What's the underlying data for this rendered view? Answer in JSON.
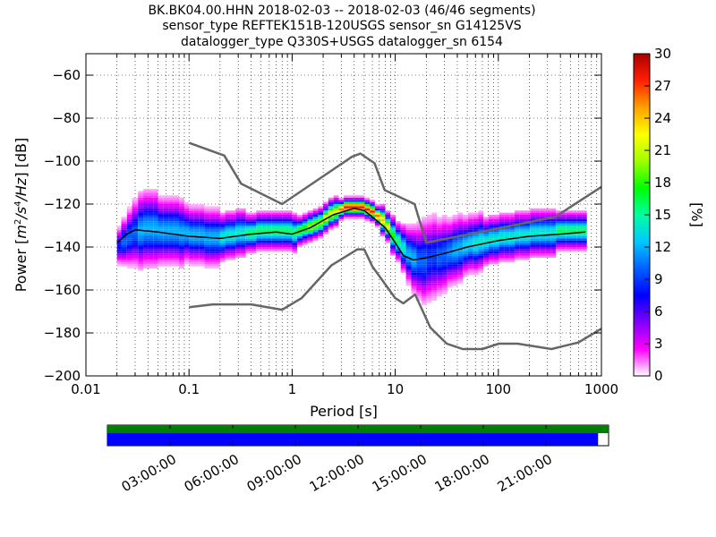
{
  "chart_data": {
    "type": "heatmap",
    "title_lines": [
      "BK.BK04.00.HHN   2018-02-03 -- 2018-02-03  (46/46 segments)",
      "sensor_type REFTEK151B-120USGS sensor_sn G14125VS",
      "datalogger_type Q330S+USGS datalogger_sn 6154"
    ],
    "xlabel": "Period [s]",
    "ylabel_prefix": "Power [",
    "ylabel_suffix": "] [dB]",
    "ylabel_unit_parts": [
      "m",
      "2",
      "/s",
      "4",
      "/Hz"
    ],
    "x_scale": "log",
    "xlim": [
      0.01,
      1000
    ],
    "ylim": [
      -200,
      -50
    ],
    "x_ticks": [
      {
        "value": 0.01,
        "label": "0.01"
      },
      {
        "value": 0.1,
        "label": "0.1"
      },
      {
        "value": 1,
        "label": "1"
      },
      {
        "value": 10,
        "label": "10"
      },
      {
        "value": 100,
        "label": "100"
      },
      {
        "value": 1000,
        "label": "1000"
      }
    ],
    "y_ticks": [
      {
        "value": -60,
        "label": "−60"
      },
      {
        "value": -80,
        "label": "−80"
      },
      {
        "value": -100,
        "label": "−100"
      },
      {
        "value": -120,
        "label": "−120"
      },
      {
        "value": -140,
        "label": "−140"
      },
      {
        "value": -160,
        "label": "−160"
      },
      {
        "value": -180,
        "label": "−180"
      },
      {
        "value": -200,
        "label": "−200"
      }
    ],
    "grid": "dotted",
    "colorbar": {
      "label": "[%]",
      "range": [
        0,
        30
      ],
      "ticks": [
        {
          "value": 0,
          "label": "0"
        },
        {
          "value": 3,
          "label": "3"
        },
        {
          "value": 6,
          "label": "6"
        },
        {
          "value": 9,
          "label": "9"
        },
        {
          "value": 12,
          "label": "12"
        },
        {
          "value": 15,
          "label": "15"
        },
        {
          "value": 18,
          "label": "18"
        },
        {
          "value": 21,
          "label": "21"
        },
        {
          "value": 24,
          "label": "24"
        },
        {
          "value": 27,
          "label": "27"
        },
        {
          "value": 30,
          "label": "30"
        }
      ],
      "colormap": [
        "#ffffff",
        "#ff00ff",
        "#7f00ff",
        "#0000ff",
        "#0060ff",
        "#00c8ff",
        "#00ffa0",
        "#00ff00",
        "#a0ff00",
        "#ffff00",
        "#ffa000",
        "#ff2000",
        "#aa0000"
      ]
    },
    "nhnm_model": {
      "x": [
        0.1,
        0.22,
        0.32,
        0.8,
        3.8,
        4.6,
        6.3,
        7.9,
        15.4,
        20,
        354.8,
        1000
      ],
      "y": [
        -91.5,
        -97.4,
        -110.5,
        -120,
        -98,
        -96.5,
        -101,
        -113.5,
        -120,
        -138,
        -126,
        -112
      ]
    },
    "nlnm_model": {
      "x": [
        0.1,
        0.17,
        0.4,
        0.8,
        1.24,
        2.4,
        4.3,
        5,
        6,
        10,
        12,
        15.6,
        21.9,
        31.6,
        45,
        70,
        101,
        154,
        328,
        600,
        1000
      ],
      "y": [
        -168,
        -166.7,
        -166.7,
        -169.2,
        -163.7,
        -148.6,
        -141.1,
        -141.1,
        -149,
        -163.8,
        -166.2,
        -162.1,
        -177.5,
        -185,
        -187.5,
        -187.5,
        -185,
        -185,
        -187.5,
        -184.4,
        -178
      ]
    },
    "mode_curve": {
      "x": [
        0.02,
        0.025,
        0.03,
        0.05,
        0.1,
        0.2,
        0.4,
        0.7,
        1,
        1.5,
        2.5,
        4,
        5,
        6,
        8,
        10,
        12,
        15,
        20,
        30,
        50,
        100,
        200,
        400,
        700
      ],
      "y": [
        -138,
        -134,
        -132,
        -133,
        -135,
        -136,
        -134,
        -133,
        -134,
        -131,
        -125,
        -122,
        -123,
        -126,
        -131,
        -138,
        -144,
        -146,
        -145,
        -143,
        -140,
        -137,
        -135,
        -134,
        -133
      ]
    },
    "psd_density": {
      "x_bins": [
        0.02,
        0.022,
        0.025,
        0.028,
        0.032,
        0.036,
        0.04,
        0.045,
        0.05,
        0.056,
        0.063,
        0.071,
        0.08,
        0.09,
        0.1,
        0.112,
        0.126,
        0.141,
        0.159,
        0.178,
        0.2,
        0.224,
        0.252,
        0.283,
        0.317,
        0.356,
        0.4,
        0.449,
        0.504,
        0.566,
        0.635,
        0.713,
        0.8,
        0.898,
        1.0,
        1.12,
        1.26,
        1.41,
        1.59,
        1.78,
        2.0,
        2.24,
        2.52,
        2.83,
        3.17,
        3.56,
        4.0,
        4.49,
        5.04,
        5.66,
        6.35,
        7.13,
        8.0,
        8.98,
        10.1,
        11.3,
        12.7,
        14.3,
        16.0,
        18.0,
        20.2,
        22.6,
        25.4,
        28.5,
        32.0,
        35.9,
        40.3,
        45.3,
        50.8,
        57.0,
        64.0,
        71.8,
        80.6,
        90.5,
        101.6,
        114,
        128,
        143.7,
        161.3,
        181,
        203.2,
        228,
        256,
        287.4,
        322.5,
        362,
        406.4,
        456.1,
        512,
        574.7,
        645
      ],
      "y_bin_db": 1,
      "rows_note": "",
      "center_db": [
        -140,
        -138,
        -136,
        -134,
        -133,
        -132,
        -132,
        -132,
        -133,
        -133,
        -133,
        -133,
        -134,
        -134,
        -135,
        -135,
        -135,
        -136,
        -136,
        -136,
        -136,
        -135,
        -135,
        -134,
        -134,
        -134,
        -134,
        -133,
        -133,
        -133,
        -133,
        -133,
        -133,
        -133,
        -134,
        -133,
        -132,
        -131,
        -130,
        -129,
        -127,
        -125,
        -124,
        -123,
        -122,
        -122,
        -122,
        -122,
        -123,
        -124,
        -126,
        -128,
        -131,
        -135,
        -138,
        -141,
        -144,
        -146,
        -147,
        -147,
        -146,
        -145,
        -145,
        -144,
        -143,
        -142,
        -141,
        -140,
        -139,
        -139,
        -138,
        -138,
        -137,
        -137,
        -136,
        -136,
        -136,
        -135,
        -135,
        -135,
        -134,
        -134,
        -134,
        -134,
        -134,
        -133,
        -133,
        -133,
        -133,
        -133,
        -133
      ],
      "spread_db": [
        4,
        5,
        6,
        7,
        8,
        8,
        8,
        8,
        7,
        7,
        7,
        7,
        7,
        6,
        6,
        6,
        6,
        6,
        6,
        6,
        5,
        5,
        5,
        5,
        5,
        4,
        4,
        4,
        4,
        4,
        4,
        4,
        4,
        4,
        4,
        3,
        3,
        3,
        3,
        3,
        3,
        3,
        3,
        2,
        2,
        2,
        2,
        2,
        2,
        2,
        2,
        3,
        3,
        4,
        4,
        5,
        6,
        7,
        8,
        9,
        9,
        9,
        8,
        8,
        7,
        7,
        7,
        6,
        6,
        6,
        6,
        5,
        5,
        5,
        5,
        5,
        5,
        5,
        5,
        5,
        5,
        5,
        5,
        5,
        5,
        4,
        4,
        4,
        4,
        4,
        4
      ],
      "peak_percent": [
        8,
        10,
        10,
        10,
        12,
        12,
        12,
        12,
        12,
        12,
        12,
        12,
        12,
        12,
        12,
        12,
        12,
        12,
        12,
        12,
        14,
        14,
        14,
        14,
        14,
        16,
        16,
        16,
        16,
        16,
        16,
        16,
        16,
        16,
        16,
        18,
        18,
        20,
        20,
        20,
        22,
        22,
        22,
        26,
        28,
        28,
        28,
        28,
        28,
        28,
        26,
        24,
        22,
        18,
        16,
        14,
        12,
        12,
        10,
        10,
        9,
        9,
        10,
        10,
        11,
        12,
        12,
        13,
        13,
        14,
        14,
        14,
        14,
        14,
        14,
        14,
        14,
        14,
        14,
        14,
        14,
        14,
        14,
        14,
        14,
        16,
        16,
        16,
        16,
        16,
        16
      ]
    }
  },
  "timeline": {
    "tick_labels": [
      "03:00:00",
      "06:00:00",
      "09:00:00",
      "12:00:00",
      "15:00:00",
      "18:00:00",
      "21:00:00"
    ],
    "tick_hours": [
      3,
      6,
      9,
      12,
      15,
      18,
      21
    ],
    "range_hours": [
      0,
      24
    ],
    "data_bar": {
      "color": "#008000",
      "coverage_fraction": 1.0
    },
    "psd_bar": {
      "color": "#0000ff",
      "coverage_fraction": 0.979
    }
  }
}
